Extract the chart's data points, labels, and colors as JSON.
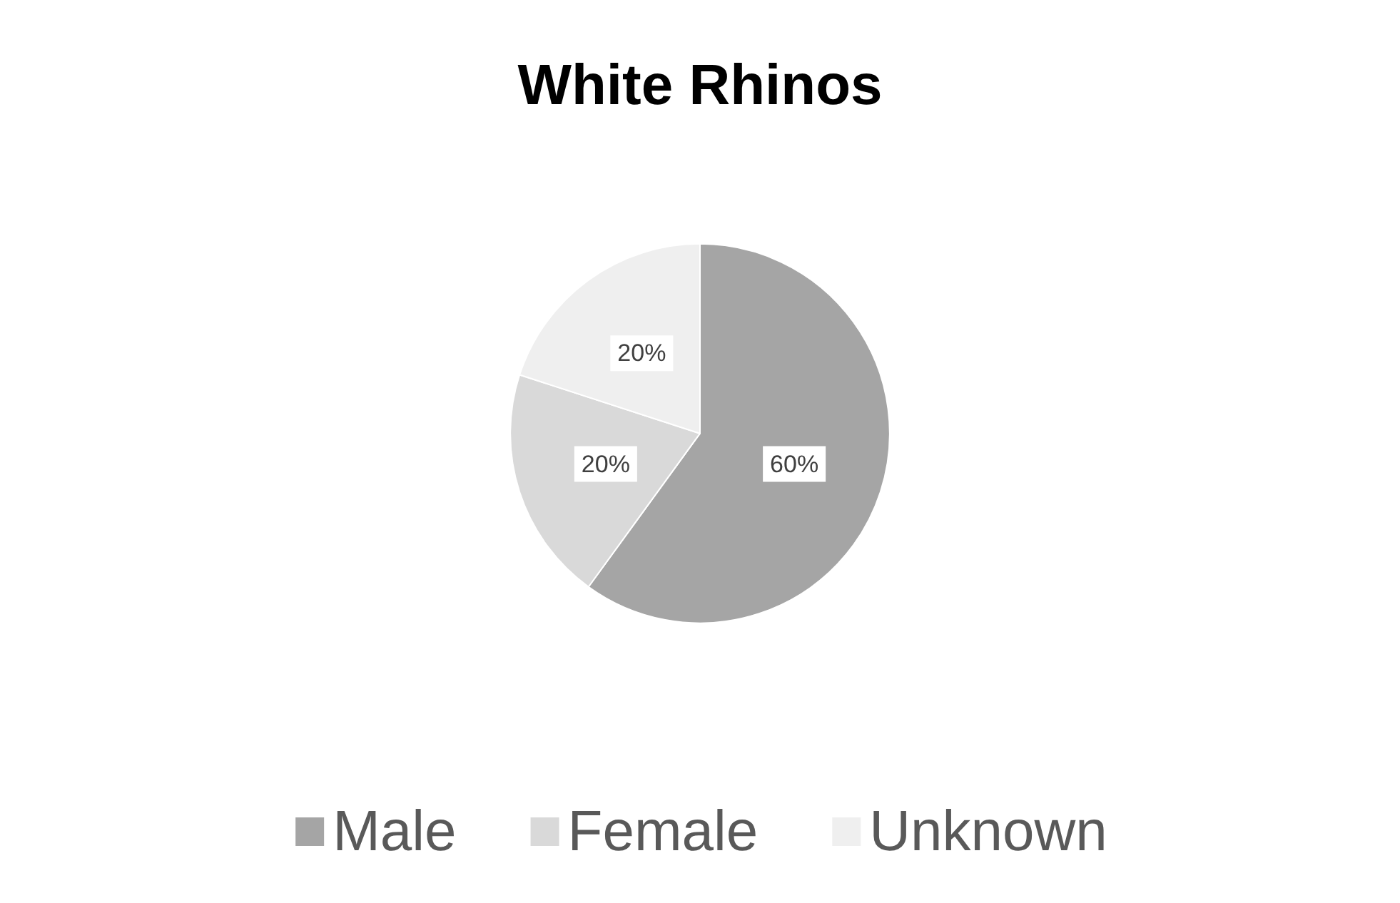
{
  "chart_data": {
    "type": "pie",
    "title": "White Rhinos",
    "categories": [
      "Male",
      "Female",
      "Unknown"
    ],
    "values": [
      60,
      20,
      20
    ],
    "colors": [
      "#a5a5a5",
      "#d9d9d9",
      "#efefef"
    ],
    "value_labels": [
      "60%",
      "20%",
      "20%"
    ],
    "legend": "bottom"
  }
}
